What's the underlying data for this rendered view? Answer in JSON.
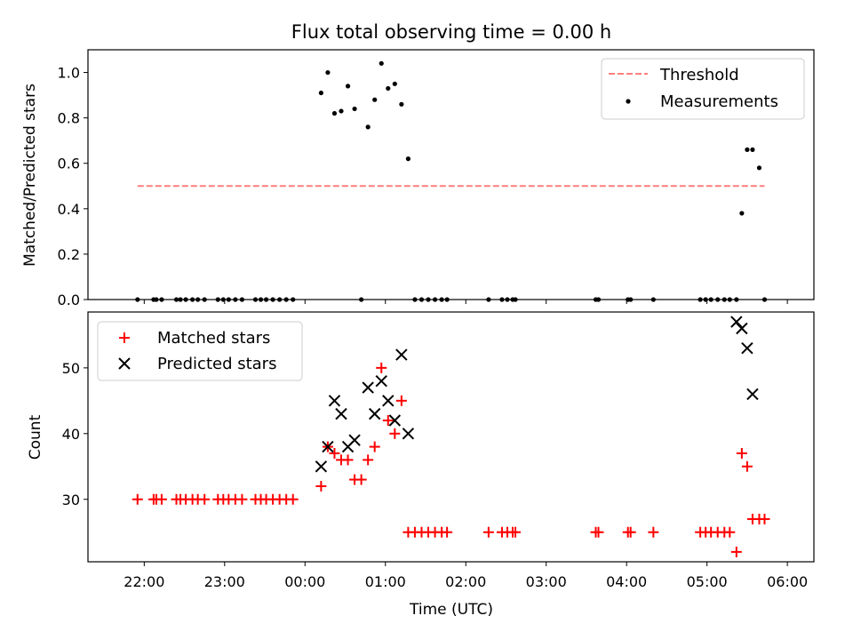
{
  "chart_data": [
    {
      "type": "scatter",
      "title": "Flux total observing time = 0.00 h",
      "ylabel": "Matched/Predicted stars",
      "xlabel": "",
      "ylim": [
        0,
        1.1
      ],
      "yticks": [
        "0.0",
        "0.2",
        "0.4",
        "0.6",
        "0.8",
        "1.0"
      ],
      "legend_position": "top-right",
      "threshold": {
        "name": "Threshold",
        "value": 0.5,
        "x_start": "21:55",
        "x_end": "05:43",
        "color": "#ff7f7f",
        "style": "dashed"
      },
      "series": [
        {
          "name": "Measurements",
          "color": "#000000",
          "marker": "dot",
          "x": [
            "21:55",
            "22:07",
            "22:09",
            "22:13",
            "22:24",
            "22:27",
            "22:31",
            "22:36",
            "22:40",
            "22:45",
            "22:55",
            "22:59",
            "23:03",
            "23:08",
            "23:13",
            "23:23",
            "23:27",
            "23:31",
            "23:36",
            "23:41",
            "23:46",
            "23:51",
            "00:12",
            "00:17",
            "00:22",
            "00:27",
            "00:32",
            "00:37",
            "00:42",
            "00:47",
            "00:52",
            "00:57",
            "01:02",
            "01:07",
            "01:12",
            "01:17",
            "01:22",
            "01:27",
            "01:32",
            "01:37",
            "01:42",
            "01:46",
            "02:17",
            "02:27",
            "02:31",
            "02:35",
            "02:37",
            "03:37",
            "03:39",
            "04:01",
            "04:03",
            "04:20",
            "04:55",
            "04:59",
            "05:03",
            "05:08",
            "05:13",
            "05:17",
            "05:22",
            "05:26",
            "05:30",
            "05:34",
            "05:39",
            "05:43"
          ],
          "y": [
            0,
            0,
            0,
            0,
            0,
            0,
            0,
            0,
            0,
            0,
            0,
            0,
            0,
            0,
            0,
            0,
            0,
            0,
            0,
            0,
            0,
            0,
            0.91,
            1.0,
            0.82,
            0.83,
            0.94,
            0.84,
            0,
            0.76,
            0.88,
            1.04,
            0.93,
            0.95,
            0.86,
            0.62,
            0,
            0,
            0,
            0,
            0,
            0,
            0,
            0,
            0,
            0,
            0,
            0,
            0,
            0,
            0,
            0,
            0,
            0,
            0,
            0,
            0,
            0,
            0,
            0.38,
            0.66,
            0.66,
            0.58,
            0
          ]
        }
      ]
    },
    {
      "type": "scatter",
      "title": "",
      "ylabel": "Count",
      "xlabel": "Time (UTC)",
      "ylim": [
        20.5,
        58.5
      ],
      "yticks": [
        "30",
        "40",
        "50"
      ],
      "xticks": [
        "22:00",
        "23:00",
        "00:00",
        "01:00",
        "02:00",
        "03:00",
        "04:00",
        "05:00",
        "06:00"
      ],
      "legend_position": "top-left",
      "series": [
        {
          "name": "Matched stars",
          "color": "#ff0000",
          "marker": "plus",
          "x": [
            "21:55",
            "22:07",
            "22:09",
            "22:13",
            "22:24",
            "22:27",
            "22:31",
            "22:36",
            "22:40",
            "22:45",
            "22:55",
            "22:59",
            "23:03",
            "23:08",
            "23:13",
            "23:23",
            "23:27",
            "23:31",
            "23:36",
            "23:41",
            "23:46",
            "23:51",
            "00:12",
            "00:17",
            "00:22",
            "00:27",
            "00:32",
            "00:37",
            "00:42",
            "00:47",
            "00:52",
            "00:57",
            "01:02",
            "01:07",
            "01:12",
            "01:17",
            "01:22",
            "01:27",
            "01:32",
            "01:37",
            "01:42",
            "01:46",
            "02:17",
            "02:27",
            "02:31",
            "02:35",
            "02:37",
            "03:37",
            "03:39",
            "04:01",
            "04:03",
            "04:20",
            "04:55",
            "04:59",
            "05:03",
            "05:08",
            "05:13",
            "05:17",
            "05:22",
            "05:26",
            "05:30",
            "05:34",
            "05:39",
            "05:43"
          ],
          "y": [
            30,
            30,
            30,
            30,
            30,
            30,
            30,
            30,
            30,
            30,
            30,
            30,
            30,
            30,
            30,
            30,
            30,
            30,
            30,
            30,
            30,
            30,
            32,
            38,
            37,
            36,
            36,
            33,
            33,
            36,
            38,
            50,
            42,
            40,
            45,
            25,
            25,
            25,
            25,
            25,
            25,
            25,
            25,
            25,
            25,
            25,
            25,
            25,
            25,
            25,
            25,
            25,
            25,
            25,
            25,
            25,
            25,
            25,
            22,
            37,
            35,
            27,
            27,
            27
          ]
        },
        {
          "name": "Predicted stars",
          "color": "#000000",
          "marker": "x",
          "x": [
            "00:12",
            "00:17",
            "00:22",
            "00:27",
            "00:32",
            "00:37",
            "00:47",
            "00:52",
            "00:57",
            "01:02",
            "01:07",
            "01:12",
            "01:17",
            "05:22",
            "05:26",
            "05:30",
            "05:34"
          ],
          "y": [
            35,
            38,
            45,
            43,
            38,
            39,
            47,
            43,
            48,
            45,
            42,
            52,
            40,
            57,
            56,
            53,
            46
          ]
        }
      ]
    }
  ]
}
